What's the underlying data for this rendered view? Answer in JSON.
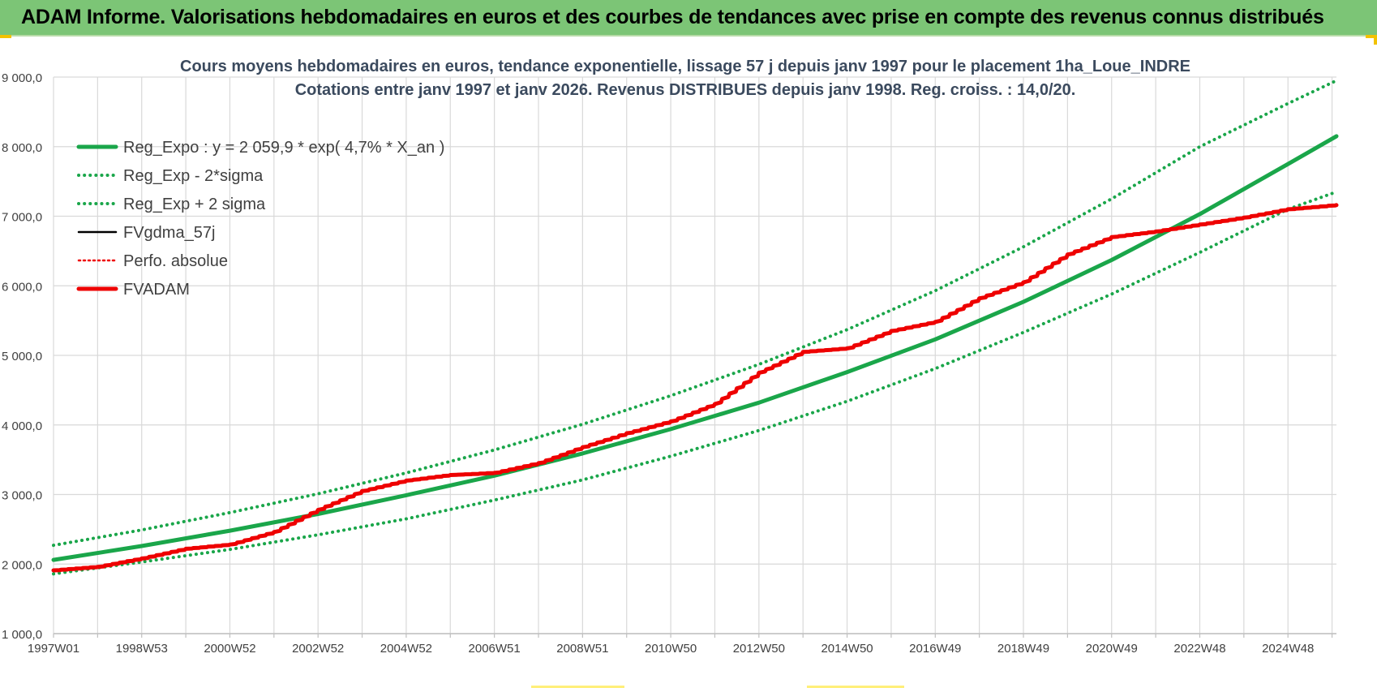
{
  "header": {
    "title": "ADAM Informe. Valorisations hebdomadaires en euros et des courbes de tendances avec prise en compte des revenus connus distribués"
  },
  "colors": {
    "header_bg": "#7cc576",
    "trend": "#1aa64a",
    "fv": "#ee0000",
    "gdma": "#000000",
    "grid": "#d9d9d9"
  },
  "chart_data": {
    "type": "line",
    "title": "Cours moyens hebdomadaires en euros, tendance exponentielle, lissage 57 j depuis janv 1997  pour le placement 1ha_Loue_INDRE",
    "subtitle": "Cotations entre janv 1997 et janv 2026. Revenus DISTRIBUES depuis janv 1998.  Reg. croiss. : 14,0/20.",
    "xlabel": "",
    "ylabel": "",
    "x_range": [
      1997.0,
      2026.1
    ],
    "ylim": [
      1000,
      9000
    ],
    "y_ticks": [
      "1 000,0",
      "2 000,0",
      "3 000,0",
      "4 000,0",
      "5 000,0",
      "6 000,0",
      "7 000,0",
      "8 000,0",
      "9 000,0"
    ],
    "y_tick_values": [
      1000,
      2000,
      3000,
      4000,
      5000,
      6000,
      7000,
      8000,
      9000
    ],
    "x_ticks": [
      "1997W01",
      "1998W53",
      "2000W52",
      "2002W52",
      "2004W52",
      "2006W51",
      "2008W51",
      "2010W50",
      "2012W50",
      "2014W50",
      "2016W49",
      "2018W49",
      "2020W49",
      "2022W48",
      "2024W48"
    ],
    "x_tick_values": [
      1997,
      1999,
      2001,
      2003,
      2005,
      2007,
      2009,
      2011,
      2013,
      2015,
      2017,
      2019,
      2021,
      2023,
      2025
    ],
    "grid": true,
    "legend_position": "top-left",
    "legend": [
      {
        "label": "Reg_Expo : y = 2 059,9 * exp( 4,7% *  X_an )",
        "style": "solid",
        "color": "#1aa64a"
      },
      {
        "label": "Reg_Exp - 2*sigma",
        "style": "dotted",
        "color": "#1aa64a"
      },
      {
        "label": "Reg_Exp + 2 sigma",
        "style": "dotted",
        "color": "#1aa64a"
      },
      {
        "label": "FVgdma_57j",
        "style": "solid",
        "color": "#000000"
      },
      {
        "label": "Perfo. absolue",
        "style": "dotted",
        "color": "#ee0000"
      },
      {
        "label": "FVADAM",
        "style": "solid",
        "color": "#ee0000"
      }
    ],
    "series": [
      {
        "name": "Reg_Expo : y = 2 059,9 * exp( 4,7% *  X_an )",
        "x": [
          1997,
          1999,
          2001,
          2003,
          2005,
          2007,
          2009,
          2011,
          2013,
          2015,
          2017,
          2019,
          2021,
          2023,
          2025,
          2026.1
        ],
        "y": [
          2060,
          2260,
          2480,
          2720,
          2990,
          3270,
          3590,
          3940,
          4320,
          4760,
          5230,
          5770,
          6370,
          7030,
          7750,
          8150
        ]
      },
      {
        "name": "Reg_Exp - 2*sigma",
        "x": [
          1997,
          1999,
          2001,
          2003,
          2005,
          2007,
          2009,
          2011,
          2013,
          2015,
          2017,
          2019,
          2021,
          2023,
          2025,
          2026.1
        ],
        "y": [
          1860,
          2030,
          2210,
          2420,
          2650,
          2920,
          3210,
          3550,
          3920,
          4340,
          4810,
          5330,
          5880,
          6480,
          7100,
          7350
        ]
      },
      {
        "name": "Reg_Exp + 2 sigma",
        "x": [
          1997,
          1999,
          2001,
          2003,
          2005,
          2007,
          2009,
          2011,
          2013,
          2015,
          2017,
          2019,
          2021,
          2023,
          2025,
          2026.1
        ],
        "y": [
          2270,
          2490,
          2740,
          3010,
          3310,
          3640,
          4010,
          4420,
          4870,
          5370,
          5930,
          6560,
          7250,
          8000,
          8620,
          8950
        ]
      },
      {
        "name": "FVgdma_57j",
        "x": [
          1997.0,
          1998.0,
          1999.0,
          2000.0,
          2001.0,
          2002.0,
          2003.0,
          2004.0,
          2005.0,
          2006.0,
          2007.0,
          2008.0,
          2009.0,
          2010.0,
          2011.0,
          2012.0,
          2013.0,
          2014.0,
          2015.0,
          2016.0,
          2017.0,
          2018.0,
          2019.0,
          2020.0,
          2021.0,
          2022.0,
          2023.0,
          2024.0,
          2025.0,
          2026.1
        ],
        "y": [
          1910,
          1960,
          2080,
          2220,
          2280,
          2460,
          2780,
          3050,
          3200,
          3280,
          3310,
          3450,
          3680,
          3880,
          4050,
          4300,
          4750,
          5050,
          5100,
          5350,
          5480,
          5820,
          6050,
          6450,
          6700,
          6780,
          6880,
          6980,
          7100,
          7160
        ]
      },
      {
        "name": "Perfo. absolue",
        "x": [
          1997.0,
          1998.0,
          1999.0,
          2000.0,
          2001.0,
          2002.0,
          2003.0,
          2004.0,
          2005.0,
          2006.0,
          2007.0,
          2008.0,
          2009.0,
          2010.0,
          2011.0,
          2012.0,
          2013.0,
          2014.0,
          2015.0,
          2016.0,
          2017.0,
          2018.0,
          2019.0,
          2020.0,
          2021.0,
          2022.0,
          2023.0,
          2024.0,
          2025.0,
          2026.1
        ],
        "y": [
          1910,
          1960,
          2080,
          2220,
          2280,
          2460,
          2780,
          3050,
          3200,
          3280,
          3310,
          3450,
          3680,
          3880,
          4050,
          4300,
          4750,
          5050,
          5100,
          5350,
          5480,
          5820,
          6050,
          6450,
          6700,
          6780,
          6880,
          6980,
          7100,
          7160
        ]
      },
      {
        "name": "FVADAM",
        "x": [
          1997.0,
          1998.0,
          1999.0,
          2000.0,
          2001.0,
          2002.0,
          2003.0,
          2004.0,
          2005.0,
          2006.0,
          2007.0,
          2008.0,
          2009.0,
          2010.0,
          2011.0,
          2012.0,
          2013.0,
          2014.0,
          2015.0,
          2016.0,
          2017.0,
          2018.0,
          2019.0,
          2020.0,
          2021.0,
          2022.0,
          2023.0,
          2024.0,
          2025.0,
          2026.1
        ],
        "y": [
          1910,
          1960,
          2080,
          2220,
          2280,
          2460,
          2780,
          3050,
          3200,
          3280,
          3310,
          3450,
          3680,
          3880,
          4050,
          4300,
          4750,
          5050,
          5100,
          5350,
          5480,
          5820,
          6050,
          6450,
          6700,
          6780,
          6880,
          6980,
          7100,
          7160
        ]
      }
    ]
  }
}
